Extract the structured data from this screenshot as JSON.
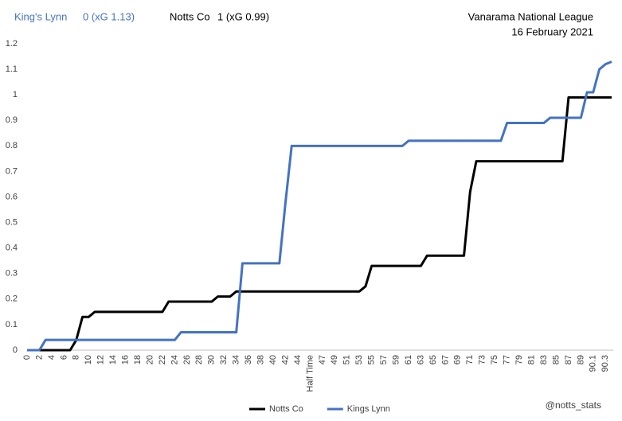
{
  "chart_data": {
    "type": "line",
    "home_team": "King's Lynn",
    "home_score": "0 (xG 1.13)",
    "away_team": "Notts Co",
    "away_score": "1 (xG 0.99)",
    "competition": "Vanarama National League",
    "date": "16 February 2021",
    "credit": "@notts_stats",
    "categories": [
      "0",
      null,
      "2",
      null,
      "4",
      null,
      "6",
      null,
      "8",
      null,
      "10",
      null,
      "12",
      null,
      "14",
      null,
      "16",
      null,
      "18",
      null,
      "20",
      null,
      "22",
      null,
      "24",
      null,
      "26",
      null,
      "28",
      null,
      "30",
      null,
      "32",
      null,
      "34",
      null,
      "36",
      null,
      "38",
      null,
      "40",
      null,
      "42",
      null,
      "44",
      null,
      "Half Time",
      null,
      "47",
      null,
      "49",
      null,
      "51",
      null,
      "53",
      null,
      "55",
      null,
      "57",
      null,
      "59",
      null,
      "61",
      null,
      "63",
      null,
      "65",
      null,
      "67",
      null,
      "69",
      null,
      "71",
      null,
      "73",
      null,
      "75",
      null,
      "77",
      null,
      "79",
      null,
      "81",
      null,
      "83",
      null,
      "85",
      null,
      "87",
      null,
      "89",
      null,
      "90.1",
      null,
      "90.3",
      null
    ],
    "series": [
      {
        "name": "Notts Co",
        "color": "#000000",
        "values": [
          0,
          0,
          0,
          0,
          0,
          0,
          0,
          0,
          0.04,
          0.13,
          0.13,
          0.15,
          0.15,
          0.15,
          0.15,
          0.15,
          0.15,
          0.15,
          0.15,
          0.15,
          0.15,
          0.15,
          0.15,
          0.19,
          0.19,
          0.19,
          0.19,
          0.19,
          0.19,
          0.19,
          0.19,
          0.21,
          0.21,
          0.21,
          0.23,
          0.23,
          0.23,
          0.23,
          0.23,
          0.23,
          0.23,
          0.23,
          0.23,
          0.23,
          0.23,
          0.23,
          0.23,
          0.23,
          0.23,
          0.23,
          0.23,
          0.23,
          0.23,
          0.23,
          0.23,
          0.25,
          0.33,
          0.33,
          0.33,
          0.33,
          0.33,
          0.33,
          0.33,
          0.33,
          0.33,
          0.37,
          0.37,
          0.37,
          0.37,
          0.37,
          0.37,
          0.37,
          0.62,
          0.74,
          0.74,
          0.74,
          0.74,
          0.74,
          0.74,
          0.74,
          0.74,
          0.74,
          0.74,
          0.74,
          0.74,
          0.74,
          0.74,
          0.74,
          0.99,
          0.99,
          0.99,
          0.99,
          0.99,
          0.99,
          0.99,
          0.99
        ]
      },
      {
        "name": "Kings Lynn",
        "color": "#4472c4",
        "values": [
          0,
          0,
          0,
          0.04,
          0.04,
          0.04,
          0.04,
          0.04,
          0.04,
          0.04,
          0.04,
          0.04,
          0.04,
          0.04,
          0.04,
          0.04,
          0.04,
          0.04,
          0.04,
          0.04,
          0.04,
          0.04,
          0.04,
          0.04,
          0.04,
          0.07,
          0.07,
          0.07,
          0.07,
          0.07,
          0.07,
          0.07,
          0.07,
          0.07,
          0.07,
          0.34,
          0.34,
          0.34,
          0.34,
          0.34,
          0.34,
          0.34,
          0.58,
          0.8,
          0.8,
          0.8,
          0.8,
          0.8,
          0.8,
          0.8,
          0.8,
          0.8,
          0.8,
          0.8,
          0.8,
          0.8,
          0.8,
          0.8,
          0.8,
          0.8,
          0.8,
          0.8,
          0.82,
          0.82,
          0.82,
          0.82,
          0.82,
          0.82,
          0.82,
          0.82,
          0.82,
          0.82,
          0.82,
          0.82,
          0.82,
          0.82,
          0.82,
          0.82,
          0.89,
          0.89,
          0.89,
          0.89,
          0.89,
          0.89,
          0.89,
          0.91,
          0.91,
          0.91,
          0.91,
          0.91,
          0.91,
          1.01,
          1.01,
          1.1,
          1.12,
          1.13
        ]
      }
    ],
    "ylim": [
      0,
      1.2
    ],
    "yticks": [
      0,
      0.1,
      0.2,
      0.3,
      0.4,
      0.5,
      0.6,
      0.7,
      0.8,
      0.9,
      1,
      1.1,
      1.2
    ],
    "grid": false,
    "legend": "bottom"
  }
}
